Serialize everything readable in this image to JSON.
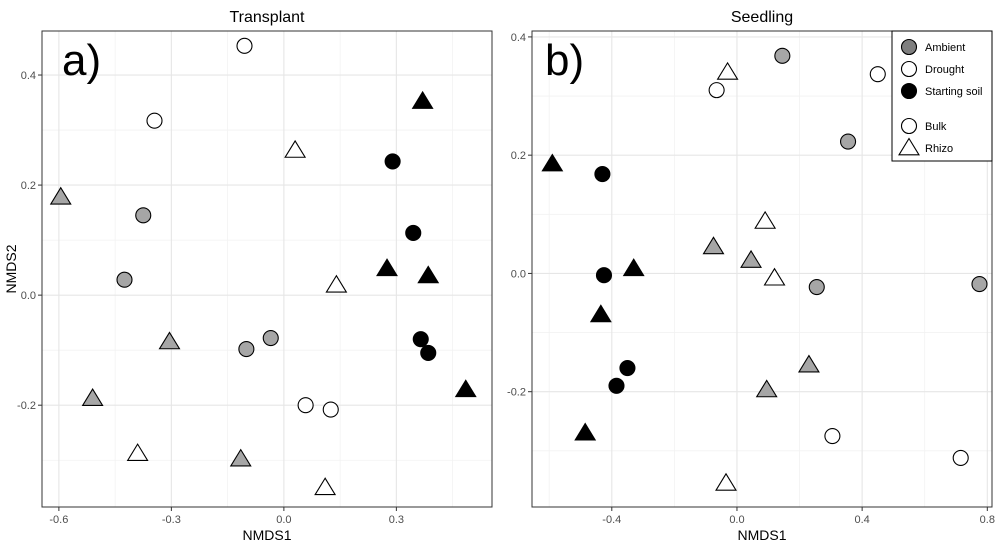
{
  "colors": {
    "ambient": "#a6a6a6",
    "ambient_legend": "#7f7f7f",
    "drought": "#ffffff",
    "starting_soil": "#000000",
    "outline": "#000000",
    "grid_major": "#e6e6e6",
    "grid_minor": "#f2f2f2"
  },
  "legend": {
    "placement": "top-right",
    "entries": [
      {
        "label": "Ambient",
        "group": "ambient",
        "shape": "circle"
      },
      {
        "label": "Drought",
        "group": "drought",
        "shape": "circle"
      },
      {
        "label": "Starting soil",
        "group": "starting_soil",
        "shape": "circle"
      },
      {
        "label": "Bulk",
        "group": "drought",
        "shape": "circle"
      },
      {
        "label": "Rhizo",
        "group": "drought",
        "shape": "triangle"
      }
    ]
  },
  "chart_data": [
    {
      "type": "scatter",
      "title": "Transplant",
      "tag": "a)",
      "xlabel": "NMDS1",
      "ylabel": "NMDS2",
      "xlim": [
        -0.645,
        0.555
      ],
      "ylim": [
        -0.385,
        0.48
      ],
      "xticks": [
        -0.6,
        -0.3,
        0.0,
        0.3
      ],
      "xtick_labels": [
        "-0.6",
        "-0.3",
        "0.0",
        "0.3"
      ],
      "yticks": [
        -0.2,
        0.0,
        0.2,
        0.4
      ],
      "ytick_labels": [
        "-0.2",
        "0.0",
        "0.2",
        "0.4"
      ],
      "grid": true,
      "series": [
        {
          "treatment": "ambient",
          "compartment": "bulk",
          "shape": "circle",
          "points": [
            [
              -0.375,
              0.145
            ],
            [
              -0.425,
              0.028
            ],
            [
              -0.1,
              -0.098
            ],
            [
              -0.035,
              -0.078
            ]
          ]
        },
        {
          "treatment": "ambient",
          "compartment": "rhizo",
          "shape": "triangle",
          "points": [
            [
              -0.595,
              0.178
            ],
            [
              -0.305,
              -0.085
            ],
            [
              -0.51,
              -0.188
            ],
            [
              -0.115,
              -0.298
            ]
          ]
        },
        {
          "treatment": "drought",
          "compartment": "bulk",
          "shape": "circle",
          "points": [
            [
              -0.105,
              0.453
            ],
            [
              -0.345,
              0.317
            ],
            [
              0.058,
              -0.2
            ],
            [
              0.125,
              -0.208
            ]
          ]
        },
        {
          "treatment": "drought",
          "compartment": "rhizo",
          "shape": "triangle",
          "points": [
            [
              0.03,
              0.263
            ],
            [
              0.14,
              0.018
            ],
            [
              -0.39,
              -0.288
            ],
            [
              0.11,
              -0.35
            ]
          ]
        },
        {
          "treatment": "starting_soil",
          "compartment": "bulk",
          "shape": "circle",
          "points": [
            [
              0.29,
              0.243
            ],
            [
              0.345,
              0.113
            ],
            [
              0.365,
              -0.08
            ],
            [
              0.385,
              -0.105
            ]
          ]
        },
        {
          "treatment": "starting_soil",
          "compartment": "rhizo",
          "shape": "triangle",
          "points": [
            [
              0.37,
              0.352
            ],
            [
              0.275,
              0.048
            ],
            [
              0.385,
              0.035
            ],
            [
              0.485,
              -0.172
            ]
          ]
        }
      ]
    },
    {
      "type": "scatter",
      "title": "Seedling",
      "tag": "b)",
      "xlabel": "NMDS1",
      "ylabel": "",
      "xlim": [
        -0.655,
        0.815
      ],
      "ylim": [
        -0.395,
        0.41
      ],
      "xticks": [
        -0.4,
        0.0,
        0.4,
        0.8
      ],
      "xtick_labels": [
        "-0.4",
        "0.0",
        "0.4",
        "0.8"
      ],
      "yticks": [
        -0.2,
        0.0,
        0.2,
        0.4
      ],
      "ytick_labels": [
        "-0.2",
        "0.0",
        "0.2",
        "0.4"
      ],
      "grid": true,
      "series": [
        {
          "treatment": "ambient",
          "compartment": "bulk",
          "shape": "circle",
          "points": [
            [
              0.145,
              0.368
            ],
            [
              0.355,
              0.223
            ],
            [
              0.255,
              -0.023
            ],
            [
              0.775,
              -0.018
            ]
          ]
        },
        {
          "treatment": "ambient",
          "compartment": "rhizo",
          "shape": "triangle",
          "points": [
            [
              -0.075,
              0.045
            ],
            [
              0.045,
              0.022
            ],
            [
              0.23,
              -0.155
            ],
            [
              0.095,
              -0.197
            ]
          ]
        },
        {
          "treatment": "drought",
          "compartment": "bulk",
          "shape": "circle",
          "points": [
            [
              0.45,
              0.337
            ],
            [
              -0.065,
              0.31
            ],
            [
              0.305,
              -0.275
            ],
            [
              0.715,
              -0.312
            ]
          ]
        },
        {
          "treatment": "drought",
          "compartment": "rhizo",
          "shape": "triangle",
          "points": [
            [
              -0.03,
              0.34
            ],
            [
              0.09,
              0.088
            ],
            [
              0.12,
              -0.008
            ],
            [
              -0.035,
              -0.355
            ]
          ]
        },
        {
          "treatment": "starting_soil",
          "compartment": "bulk",
          "shape": "circle",
          "points": [
            [
              -0.43,
              0.168
            ],
            [
              -0.425,
              -0.003
            ],
            [
              -0.35,
              -0.16
            ],
            [
              -0.385,
              -0.19
            ]
          ]
        },
        {
          "treatment": "starting_soil",
          "compartment": "rhizo",
          "shape": "triangle",
          "points": [
            [
              -0.59,
              0.185
            ],
            [
              -0.33,
              0.008
            ],
            [
              -0.435,
              -0.07
            ],
            [
              -0.485,
              -0.27
            ]
          ]
        }
      ]
    }
  ]
}
